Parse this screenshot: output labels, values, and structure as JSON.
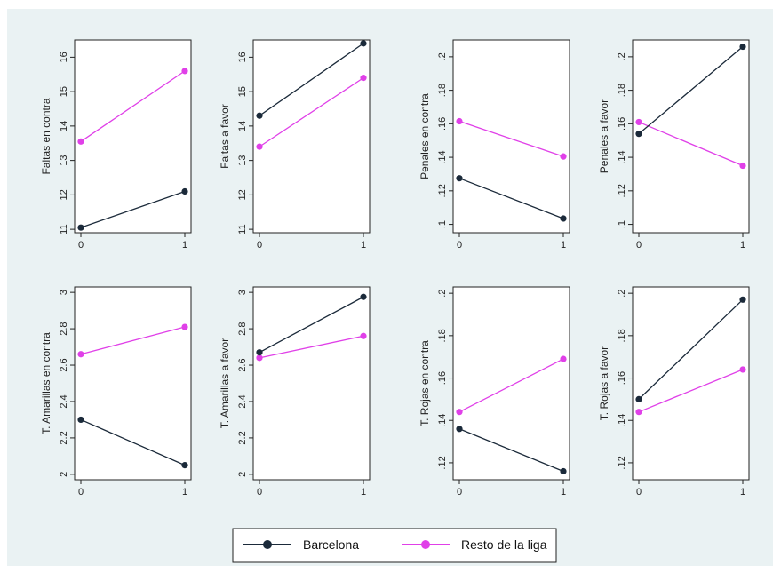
{
  "chart_data": {
    "type": "line",
    "legend": {
      "placement": "bottom-center"
    },
    "series": [
      {
        "name": "Barcelona",
        "color": "#1b2a3a"
      },
      {
        "name": "Resto de la liga",
        "color": "#e040e8"
      }
    ],
    "panels": [
      {
        "ylabel": "Faltas en contra",
        "ylim": [
          10.9,
          16.5
        ],
        "yticks": [
          11,
          12,
          13,
          14,
          15,
          16
        ],
        "ytick_labels": [
          "11",
          "12",
          "13",
          "14",
          "15",
          "16"
        ],
        "x": [
          0,
          1
        ],
        "barcelona": [
          11.05,
          12.1
        ],
        "resto": [
          13.55,
          15.6
        ]
      },
      {
        "ylabel": "Faltas a favor",
        "ylim": [
          10.9,
          16.5
        ],
        "yticks": [
          11,
          12,
          13,
          14,
          15,
          16
        ],
        "ytick_labels": [
          "11",
          "12",
          "13",
          "14",
          "15",
          "16"
        ],
        "x": [
          0,
          1
        ],
        "barcelona": [
          14.3,
          16.4
        ],
        "resto": [
          13.4,
          15.4
        ]
      },
      {
        "ylabel": "Penales en contra",
        "ylim": [
          0.095,
          0.21
        ],
        "yticks": [
          0.1,
          0.12,
          0.14,
          0.16,
          0.18,
          0.2
        ],
        "ytick_labels": [
          ".1",
          ".12",
          ".14",
          ".16",
          ".18",
          ".2"
        ],
        "x": [
          0,
          1
        ],
        "barcelona": [
          0.1275,
          0.1035
        ],
        "resto": [
          0.1615,
          0.1405
        ]
      },
      {
        "ylabel": "Penales a favor",
        "ylim": [
          0.095,
          0.21
        ],
        "yticks": [
          0.1,
          0.12,
          0.14,
          0.16,
          0.18,
          0.2
        ],
        "ytick_labels": [
          ".1",
          ".12",
          ".14",
          ".16",
          ".18",
          ".2"
        ],
        "x": [
          0,
          1
        ],
        "barcelona": [
          0.154,
          0.206
        ],
        "resto": [
          0.161,
          0.135
        ]
      },
      {
        "ylabel": "T. Amarillas en contra",
        "ylim": [
          1.97,
          3.03
        ],
        "yticks": [
          2,
          2.2,
          2.4,
          2.6,
          2.8,
          3
        ],
        "ytick_labels": [
          "2",
          "2.2",
          "2.4",
          "2.6",
          "2.8",
          "3"
        ],
        "x": [
          0,
          1
        ],
        "barcelona": [
          2.3,
          2.05
        ],
        "resto": [
          2.66,
          2.81
        ]
      },
      {
        "ylabel": "T. Amarillas a favor",
        "ylim": [
          1.97,
          3.03
        ],
        "yticks": [
          2,
          2.2,
          2.4,
          2.6,
          2.8,
          3
        ],
        "ytick_labels": [
          "2",
          "2.2",
          "2.4",
          "2.6",
          "2.8",
          "3"
        ],
        "x": [
          0,
          1
        ],
        "barcelona": [
          2.67,
          2.975
        ],
        "resto": [
          2.64,
          2.76
        ]
      },
      {
        "ylabel": "T. Rojas en contra",
        "ylim": [
          0.112,
          0.203
        ],
        "yticks": [
          0.12,
          0.14,
          0.16,
          0.18,
          0.2
        ],
        "ytick_labels": [
          ".12",
          ".14",
          ".16",
          ".18",
          ".2"
        ],
        "x": [
          0,
          1
        ],
        "barcelona": [
          0.136,
          0.116
        ],
        "resto": [
          0.144,
          0.169
        ]
      },
      {
        "ylabel": "T. Rojas a favor",
        "ylim": [
          0.112,
          0.203
        ],
        "yticks": [
          0.12,
          0.14,
          0.16,
          0.18,
          0.2
        ],
        "ytick_labels": [
          ".12",
          ".14",
          ".16",
          ".18",
          ".2"
        ],
        "x": [
          0,
          1
        ],
        "barcelona": [
          0.15,
          0.197
        ],
        "resto": [
          0.144,
          0.164
        ]
      }
    ],
    "xtick_labels": [
      "0",
      "1"
    ]
  }
}
